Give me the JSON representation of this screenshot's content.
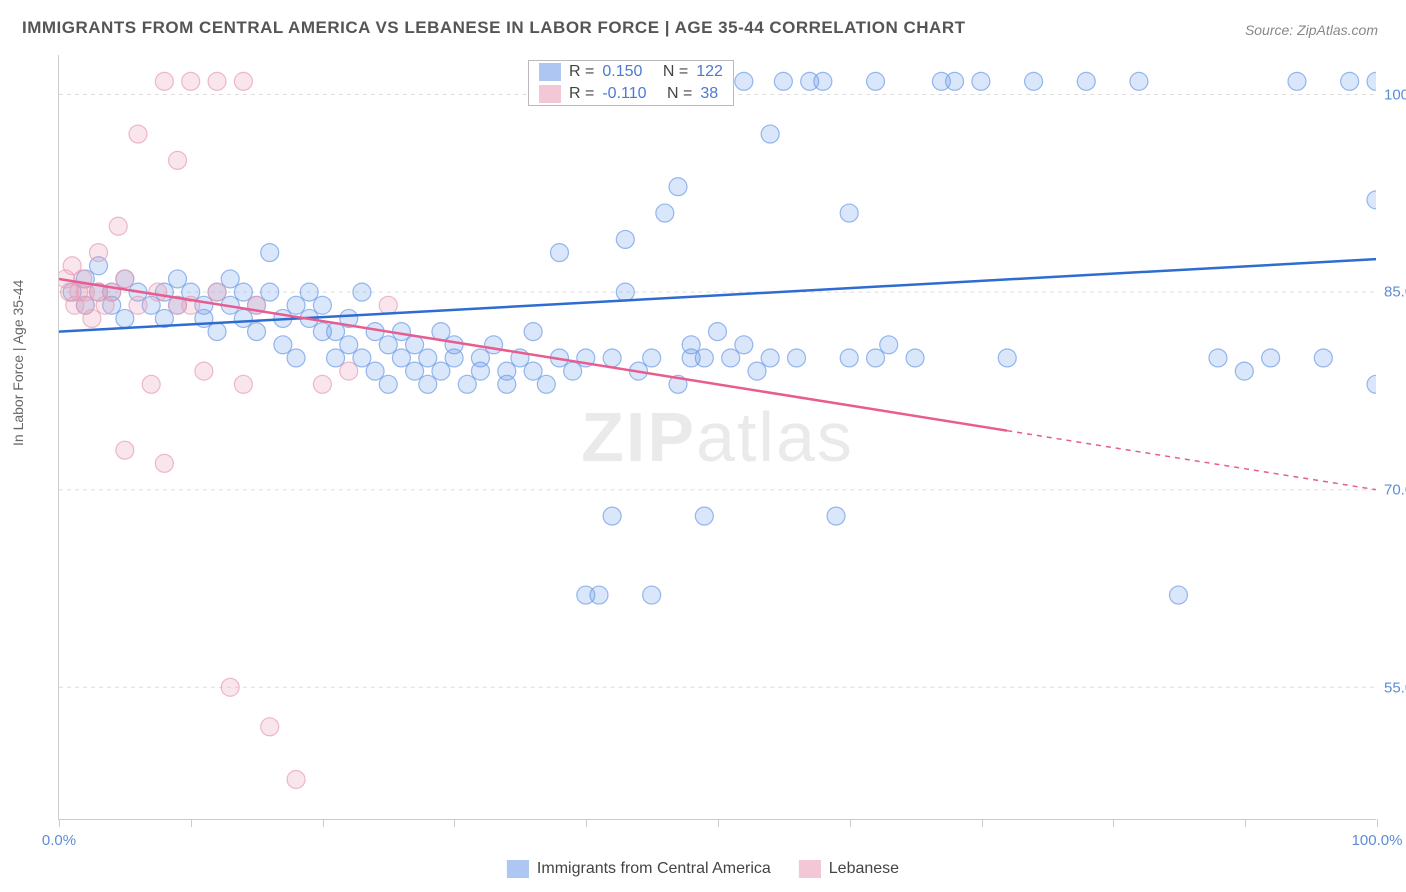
{
  "title": "IMMIGRANTS FROM CENTRAL AMERICA VS LEBANESE IN LABOR FORCE | AGE 35-44 CORRELATION CHART",
  "source": "Source: ZipAtlas.com",
  "watermark": "ZIPatlas",
  "y_axis_label": "In Labor Force | Age 35-44",
  "chart": {
    "type": "scatter",
    "background_color": "#ffffff",
    "grid_color": "#dddddd",
    "axis_line_color": "#cccccc",
    "tick_label_color": "#5b8dd6",
    "xlim": [
      0,
      100
    ],
    "ylim": [
      45,
      103
    ],
    "x_ticks": [
      0,
      10,
      20,
      30,
      40,
      50,
      60,
      70,
      80,
      90,
      100
    ],
    "x_tick_labels": {
      "0": "0.0%",
      "100": "100.0%"
    },
    "y_ticks": [
      55,
      70,
      85,
      100
    ],
    "y_tick_labels": {
      "55": "55.0%",
      "70": "70.0%",
      "85": "85.0%",
      "100": "100.0%"
    },
    "marker_radius": 9,
    "marker_fill_opacity": 0.25,
    "marker_stroke_opacity": 0.7,
    "marker_stroke_width": 1.2,
    "line_width": 2.5,
    "series": [
      {
        "name": "Immigrants from Central America",
        "color": "#6b9be8",
        "line_color": "#2e6cd1",
        "trend": {
          "x1": 0,
          "y1": 82.0,
          "x2": 100,
          "y2": 87.5,
          "dashed_from_x": 100
        },
        "r": "0.150",
        "n": "122",
        "points": [
          [
            1,
            85
          ],
          [
            2,
            84
          ],
          [
            2,
            86
          ],
          [
            3,
            85
          ],
          [
            3,
            87
          ],
          [
            4,
            84
          ],
          [
            4,
            85
          ],
          [
            5,
            83
          ],
          [
            5,
            86
          ],
          [
            6,
            85
          ],
          [
            7,
            84
          ],
          [
            8,
            85
          ],
          [
            8,
            83
          ],
          [
            9,
            86
          ],
          [
            9,
            84
          ],
          [
            10,
            85
          ],
          [
            11,
            83
          ],
          [
            11,
            84
          ],
          [
            12,
            85
          ],
          [
            12,
            82
          ],
          [
            13,
            84
          ],
          [
            13,
            86
          ],
          [
            14,
            83
          ],
          [
            14,
            85
          ],
          [
            15,
            82
          ],
          [
            15,
            84
          ],
          [
            16,
            85
          ],
          [
            16,
            88
          ],
          [
            17,
            81
          ],
          [
            17,
            83
          ],
          [
            18,
            84
          ],
          [
            18,
            80
          ],
          [
            19,
            83
          ],
          [
            19,
            85
          ],
          [
            20,
            82
          ],
          [
            20,
            84
          ],
          [
            21,
            80
          ],
          [
            21,
            82
          ],
          [
            22,
            81
          ],
          [
            22,
            83
          ],
          [
            23,
            80
          ],
          [
            23,
            85
          ],
          [
            24,
            82
          ],
          [
            24,
            79
          ],
          [
            25,
            81
          ],
          [
            25,
            78
          ],
          [
            26,
            80
          ],
          [
            26,
            82
          ],
          [
            27,
            79
          ],
          [
            27,
            81
          ],
          [
            28,
            80
          ],
          [
            28,
            78
          ],
          [
            29,
            82
          ],
          [
            29,
            79
          ],
          [
            30,
            80
          ],
          [
            30,
            81
          ],
          [
            31,
            78
          ],
          [
            32,
            80
          ],
          [
            32,
            79
          ],
          [
            33,
            81
          ],
          [
            34,
            79
          ],
          [
            34,
            78
          ],
          [
            35,
            80
          ],
          [
            36,
            79
          ],
          [
            36,
            82
          ],
          [
            37,
            78
          ],
          [
            38,
            80
          ],
          [
            38,
            88
          ],
          [
            39,
            79
          ],
          [
            40,
            80
          ],
          [
            40,
            62
          ],
          [
            41,
            62
          ],
          [
            42,
            80
          ],
          [
            42,
            68
          ],
          [
            43,
            85
          ],
          [
            43,
            89
          ],
          [
            44,
            79
          ],
          [
            45,
            80
          ],
          [
            45,
            62
          ],
          [
            46,
            91
          ],
          [
            47,
            78
          ],
          [
            47,
            93
          ],
          [
            48,
            80
          ],
          [
            48,
            81
          ],
          [
            49,
            80
          ],
          [
            49,
            68
          ],
          [
            50,
            82
          ],
          [
            50,
            101
          ],
          [
            51,
            80
          ],
          [
            52,
            81
          ],
          [
            52,
            101
          ],
          [
            53,
            79
          ],
          [
            54,
            80
          ],
          [
            54,
            97
          ],
          [
            55,
            101
          ],
          [
            56,
            80
          ],
          [
            57,
            101
          ],
          [
            58,
            101
          ],
          [
            59,
            68
          ],
          [
            60,
            80
          ],
          [
            60,
            91
          ],
          [
            62,
            101
          ],
          [
            62,
            80
          ],
          [
            63,
            81
          ],
          [
            65,
            80
          ],
          [
            67,
            101
          ],
          [
            68,
            101
          ],
          [
            70,
            101
          ],
          [
            72,
            80
          ],
          [
            74,
            101
          ],
          [
            78,
            101
          ],
          [
            82,
            101
          ],
          [
            85,
            62
          ],
          [
            88,
            80
          ],
          [
            90,
            79
          ],
          [
            92,
            80
          ],
          [
            94,
            101
          ],
          [
            96,
            80
          ],
          [
            98,
            101
          ],
          [
            100,
            101
          ],
          [
            100,
            92
          ],
          [
            100,
            78
          ]
        ]
      },
      {
        "name": "Lebanese",
        "color": "#e89bb5",
        "line_color": "#e85c8f",
        "trend": {
          "x1": 0,
          "y1": 86.0,
          "x2": 100,
          "y2": 70.0,
          "dashed_from_x": 72
        },
        "r": "-0.110",
        "n": "38",
        "points": [
          [
            0.5,
            86
          ],
          [
            0.8,
            85
          ],
          [
            1,
            87
          ],
          [
            1.2,
            84
          ],
          [
            1.5,
            85
          ],
          [
            1.8,
            86
          ],
          [
            2,
            84
          ],
          [
            2,
            85
          ],
          [
            2.5,
            83
          ],
          [
            3,
            85
          ],
          [
            3,
            88
          ],
          [
            3.5,
            84
          ],
          [
            4,
            85
          ],
          [
            4.5,
            90
          ],
          [
            5,
            73
          ],
          [
            5,
            86
          ],
          [
            6,
            84
          ],
          [
            6,
            97
          ],
          [
            7,
            78
          ],
          [
            7.5,
            85
          ],
          [
            8,
            101
          ],
          [
            8,
            72
          ],
          [
            9,
            84
          ],
          [
            9,
            95
          ],
          [
            10,
            84
          ],
          [
            10,
            101
          ],
          [
            11,
            79
          ],
          [
            12,
            85
          ],
          [
            12,
            101
          ],
          [
            13,
            55
          ],
          [
            14,
            78
          ],
          [
            14,
            101
          ],
          [
            15,
            84
          ],
          [
            16,
            52
          ],
          [
            18,
            48
          ],
          [
            20,
            78
          ],
          [
            22,
            79
          ],
          [
            25,
            84
          ]
        ]
      }
    ]
  },
  "legend_labels": {
    "r_prefix": "R =",
    "n_prefix": "N ="
  }
}
